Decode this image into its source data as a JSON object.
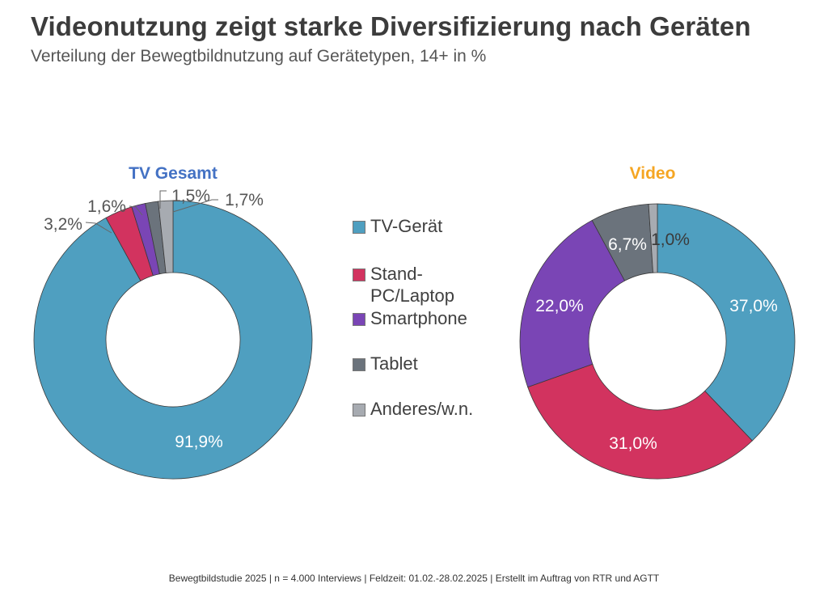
{
  "title": "Videonutzung zeigt starke Diversifizierung nach Geräten",
  "subtitle": "Verteilung der Bewegtbildnutzung auf Gerätetypen, 14+ in %",
  "footer": "Bewegtbildstudie 2025 | n = 4.000 Interviews | Feldzeit: 01.02.-28.02.2025 | Erstellt im Auftrag von RTR und AGTT",
  "colors": {
    "tv": "#4f9fc0",
    "pc": "#d2335f",
    "smartphone": "#7a45b5",
    "tablet": "#6b737c",
    "other": "#a7abb1",
    "title_tv": "#4472c4",
    "title_video": "#f5a623"
  },
  "legend": [
    {
      "label": "TV-Gerät",
      "color_key": "tv"
    },
    {
      "label": "Stand-PC/Laptop",
      "color_key": "pc"
    },
    {
      "label": "Smartphone",
      "color_key": "smartphone"
    },
    {
      "label": "Tablet",
      "color_key": "tablet"
    },
    {
      "label": "Anderes/w.n.",
      "color_key": "other"
    }
  ],
  "chart_data": [
    {
      "type": "pie",
      "subtype": "donut",
      "title": "TV Gesamt",
      "title_color_key": "title_tv",
      "categories": [
        "TV-Gerät",
        "Stand-PC/Laptop",
        "Smartphone",
        "Tablet",
        "Anderes/w.n."
      ],
      "values": [
        91.9,
        3.2,
        1.6,
        1.5,
        1.7
      ],
      "value_labels": [
        "91,9%",
        "3,2%",
        "1,6%",
        "1,5%",
        "1,7%"
      ]
    },
    {
      "type": "pie",
      "subtype": "donut",
      "title": "Video",
      "title_color_key": "title_video",
      "categories": [
        "TV-Gerät",
        "Stand-PC/Laptop",
        "Smartphone",
        "Tablet",
        "Anderes/w.n."
      ],
      "values": [
        37.0,
        31.0,
        22.0,
        6.7,
        1.0
      ],
      "value_labels": [
        "37,0%",
        "31,0%",
        "22,0%",
        "6,7%",
        "1,0%"
      ]
    }
  ]
}
